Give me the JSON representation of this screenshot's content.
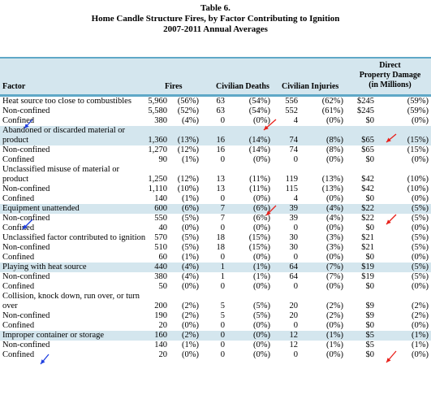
{
  "title": {
    "line1": "Table 6.",
    "line2": "Home Candle Structure Fires, by Factor Contributing to Ignition",
    "line3": "2007-2011 Annual Averages"
  },
  "headers": {
    "factor": "Factor",
    "fires": "Fires",
    "deaths": "Civilian Deaths",
    "injuries": "Civilian Injuries",
    "damage_line1": "Direct",
    "damage_line2": "Property Damage",
    "damage_line3": "(in Millions)"
  },
  "rows": [
    {
      "label": "Heat source too close to combustibles",
      "fires": "5,960",
      "fires_pct": "(56%)",
      "deaths": "63",
      "deaths_pct": "(54%)",
      "inj": "556",
      "inj_pct": "(62%)",
      "dmg": "$245",
      "dmg_pct": "(59%)",
      "shaded": false,
      "lines": 1,
      "total": true
    },
    {
      "label": "Non-confined",
      "fires": "5,580",
      "fires_pct": "(52%)",
      "deaths": "63",
      "deaths_pct": "(54%)",
      "inj": "552",
      "inj_pct": "(61%)",
      "dmg": "$245",
      "dmg_pct": "(59%)",
      "shaded": false,
      "lines": 1
    },
    {
      "label": "Confined",
      "fires": "380",
      "fires_pct": "(4%)",
      "deaths": "0",
      "deaths_pct": "(0%)",
      "inj": "4",
      "inj_pct": "(0%)",
      "dmg": "$0",
      "dmg_pct": "(0%)",
      "shaded": false,
      "lines": 1
    },
    {
      "label": "Abandoned or discarded material or product",
      "fires": "1,360",
      "fires_pct": "(13%)",
      "deaths": "16",
      "deaths_pct": "(14%)",
      "inj": "74",
      "inj_pct": "(8%)",
      "dmg": "$65",
      "dmg_pct": "(15%)",
      "shaded": true,
      "lines": 2
    },
    {
      "label": "Non-confined",
      "fires": "1,270",
      "fires_pct": "(12%)",
      "deaths": "16",
      "deaths_pct": "(14%)",
      "inj": "74",
      "inj_pct": "(8%)",
      "dmg": "$65",
      "dmg_pct": "(15%)",
      "shaded": false,
      "lines": 1
    },
    {
      "label": "Confined",
      "fires": "90",
      "fires_pct": "(1%)",
      "deaths": "0",
      "deaths_pct": "(0%)",
      "inj": "0",
      "inj_pct": "(0%)",
      "dmg": "$0",
      "dmg_pct": "(0%)",
      "shaded": false,
      "lines": 1
    },
    {
      "label": "Unclassified misuse of material or product",
      "fires": "1,250",
      "fires_pct": "(12%)",
      "deaths": "13",
      "deaths_pct": "(11%)",
      "inj": "119",
      "inj_pct": "(13%)",
      "dmg": "$42",
      "dmg_pct": "(10%)",
      "shaded": false,
      "lines": 2
    },
    {
      "label": "Non-confined",
      "fires": "1,110",
      "fires_pct": "(10%)",
      "deaths": "13",
      "deaths_pct": "(11%)",
      "inj": "115",
      "inj_pct": "(13%)",
      "dmg": "$42",
      "dmg_pct": "(10%)",
      "shaded": false,
      "lines": 1
    },
    {
      "label": "Confined",
      "fires": "140",
      "fires_pct": "(1%)",
      "deaths": "0",
      "deaths_pct": "(0%)",
      "inj": "4",
      "inj_pct": "(0%)",
      "dmg": "$0",
      "dmg_pct": "(0%)",
      "shaded": false,
      "lines": 1
    },
    {
      "label": "Equipment unattended",
      "fires": "600",
      "fires_pct": "(6%)",
      "deaths": "7",
      "deaths_pct": "(6%)",
      "inj": "39",
      "inj_pct": "(4%)",
      "dmg": "$22",
      "dmg_pct": "(5%)",
      "shaded": true,
      "lines": 1
    },
    {
      "label": "Non-confined",
      "fires": "550",
      "fires_pct": "(5%)",
      "deaths": "7",
      "deaths_pct": "(6%)",
      "inj": "39",
      "inj_pct": "(4%)",
      "dmg": "$22",
      "dmg_pct": "(5%)",
      "shaded": false,
      "lines": 1
    },
    {
      "label": "Confined",
      "fires": "40",
      "fires_pct": "(0%)",
      "deaths": "0",
      "deaths_pct": "(0%)",
      "inj": "0",
      "inj_pct": "(0%)",
      "dmg": "$0",
      "dmg_pct": "(0%)",
      "shaded": false,
      "lines": 1
    },
    {
      "label": "Unclassified factor contributed to ignition",
      "fires": "570",
      "fires_pct": "(5%)",
      "deaths": "18",
      "deaths_pct": "(15%)",
      "inj": "30",
      "inj_pct": "(3%)",
      "dmg": "$21",
      "dmg_pct": "(5%)",
      "shaded": false,
      "lines": 2
    },
    {
      "label": "Non-confined",
      "fires": "510",
      "fires_pct": "(5%)",
      "deaths": "18",
      "deaths_pct": "(15%)",
      "inj": "30",
      "inj_pct": "(3%)",
      "dmg": "$21",
      "dmg_pct": "(5%)",
      "shaded": false,
      "lines": 1
    },
    {
      "label": "Confined",
      "fires": "60",
      "fires_pct": "(1%)",
      "deaths": "0",
      "deaths_pct": "(0%)",
      "inj": "0",
      "inj_pct": "(0%)",
      "dmg": "$0",
      "dmg_pct": "(0%)",
      "shaded": false,
      "lines": 1
    },
    {
      "label": "Playing with heat source",
      "fires": "440",
      "fires_pct": "(4%)",
      "deaths": "1",
      "deaths_pct": "(1%)",
      "inj": "64",
      "inj_pct": "(7%)",
      "dmg": "$19",
      "dmg_pct": "(5%)",
      "shaded": true,
      "lines": 1
    },
    {
      "label": "Non-confined",
      "fires": "380",
      "fires_pct": "(4%)",
      "deaths": "1",
      "deaths_pct": "(1%)",
      "inj": "64",
      "inj_pct": "(7%)",
      "dmg": "$19",
      "dmg_pct": "(5%)",
      "shaded": false,
      "lines": 1
    },
    {
      "label": "Confined",
      "fires": "50",
      "fires_pct": "(0%)",
      "deaths": "0",
      "deaths_pct": "(0%)",
      "inj": "0",
      "inj_pct": "(0%)",
      "dmg": "$0",
      "dmg_pct": "(0%)",
      "shaded": false,
      "lines": 1
    },
    {
      "label": "Collision, knock down, run over, or turn over",
      "fires": "200",
      "fires_pct": "(2%)",
      "deaths": "5",
      "deaths_pct": "(5%)",
      "inj": "20",
      "inj_pct": "(2%)",
      "dmg": "$9",
      "dmg_pct": "(2%)",
      "shaded": false,
      "lines": 2
    },
    {
      "label": "Non-confined",
      "fires": "190",
      "fires_pct": "(2%)",
      "deaths": "5",
      "deaths_pct": "(5%)",
      "inj": "20",
      "inj_pct": "(2%)",
      "dmg": "$9",
      "dmg_pct": "(2%)",
      "shaded": false,
      "lines": 1
    },
    {
      "label": "Confined",
      "fires": "20",
      "fires_pct": "(0%)",
      "deaths": "0",
      "deaths_pct": "(0%)",
      "inj": "0",
      "inj_pct": "(0%)",
      "dmg": "$0",
      "dmg_pct": "(0%)",
      "shaded": false,
      "lines": 1
    },
    {
      "label": "Improper container or storage",
      "fires": "160",
      "fires_pct": "(2%)",
      "deaths": "0",
      "deaths_pct": "(0%)",
      "inj": "12",
      "inj_pct": "(1%)",
      "dmg": "$5",
      "dmg_pct": "(1%)",
      "shaded": true,
      "lines": 1
    },
    {
      "label": "Non-confined",
      "fires": "140",
      "fires_pct": "(1%)",
      "deaths": "0",
      "deaths_pct": "(0%)",
      "inj": "12",
      "inj_pct": "(1%)",
      "dmg": "$5",
      "dmg_pct": "(1%)",
      "shaded": false,
      "lines": 1
    },
    {
      "label": "Confined",
      "fires": "20",
      "fires_pct": "(0%)",
      "deaths": "0",
      "deaths_pct": "(0%)",
      "inj": "0",
      "inj_pct": "(0%)",
      "dmg": "$0",
      "dmg_pct": "(0%)",
      "shaded": false,
      "lines": 1
    }
  ],
  "annotation_colors": {
    "blue_arrow": "#1f3fe0",
    "red_arrow": "#e8201a"
  }
}
